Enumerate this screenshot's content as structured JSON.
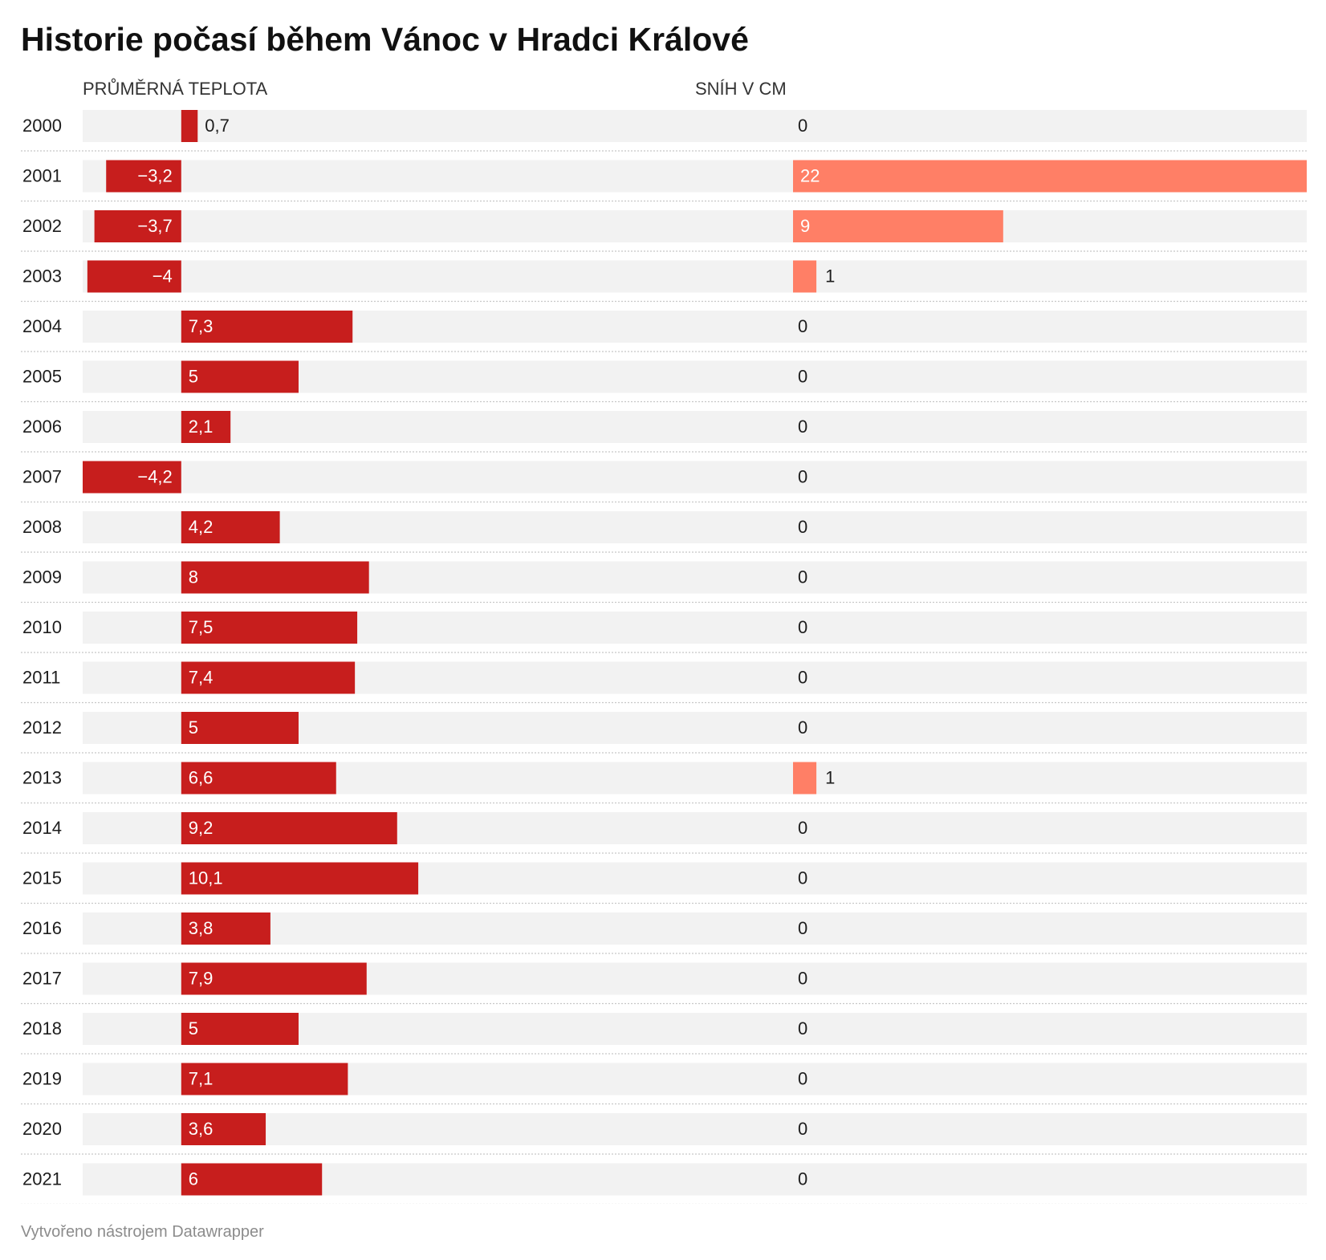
{
  "title": "Historie počasí během Vánoc v Hradci Králové",
  "footer": "Vytvořeno nástrojem Datawrapper",
  "colors": {
    "temp_bar": "#c71e1d",
    "snow_bar": "#ff7f66",
    "track": "#f2f2f2",
    "divider": "#c8c8c8",
    "text": "#1d1d1d",
    "label_inside": "#ffffff"
  },
  "chart_data": {
    "type": "bar",
    "layout": "split bars",
    "categories": [
      "2000",
      "2001",
      "2002",
      "2003",
      "2004",
      "2005",
      "2006",
      "2007",
      "2008",
      "2009",
      "2010",
      "2011",
      "2012",
      "2013",
      "2014",
      "2015",
      "2016",
      "2017",
      "2018",
      "2019",
      "2020",
      "2021"
    ],
    "series": [
      {
        "name": "PRŮMĚRNÁ TEPLOTA",
        "values": [
          0.7,
          -3.2,
          -3.7,
          -4,
          7.3,
          5,
          2.1,
          -4.2,
          4.2,
          8,
          7.5,
          7.4,
          5,
          6.6,
          9.2,
          10.1,
          3.8,
          7.9,
          5,
          7.1,
          3.6,
          6
        ],
        "labels": [
          "0,7",
          "−3,2",
          "−3,7",
          "−4",
          "7,3",
          "5",
          "2,1",
          "−4,2",
          "4,2",
          "8",
          "7,5",
          "7,4",
          "5",
          "6,6",
          "9,2",
          "10,1",
          "3,8",
          "7,9",
          "5",
          "7,1",
          "3,6",
          "6"
        ],
        "range": [
          -4.2,
          22
        ]
      },
      {
        "name": "SNÍH V CM",
        "values": [
          0,
          22,
          9,
          1,
          0,
          0,
          0,
          0,
          0,
          0,
          0,
          0,
          0,
          1,
          0,
          0,
          0,
          0,
          0,
          0,
          0,
          0
        ],
        "labels": [
          "0",
          "22",
          "9",
          "1",
          "0",
          "0",
          "0",
          "0",
          "0",
          "0",
          "0",
          "0",
          "0",
          "1",
          "0",
          "0",
          "0",
          "0",
          "0",
          "0",
          "0",
          "0"
        ],
        "range": [
          0,
          22
        ]
      }
    ],
    "grid": false,
    "legend": "none"
  }
}
